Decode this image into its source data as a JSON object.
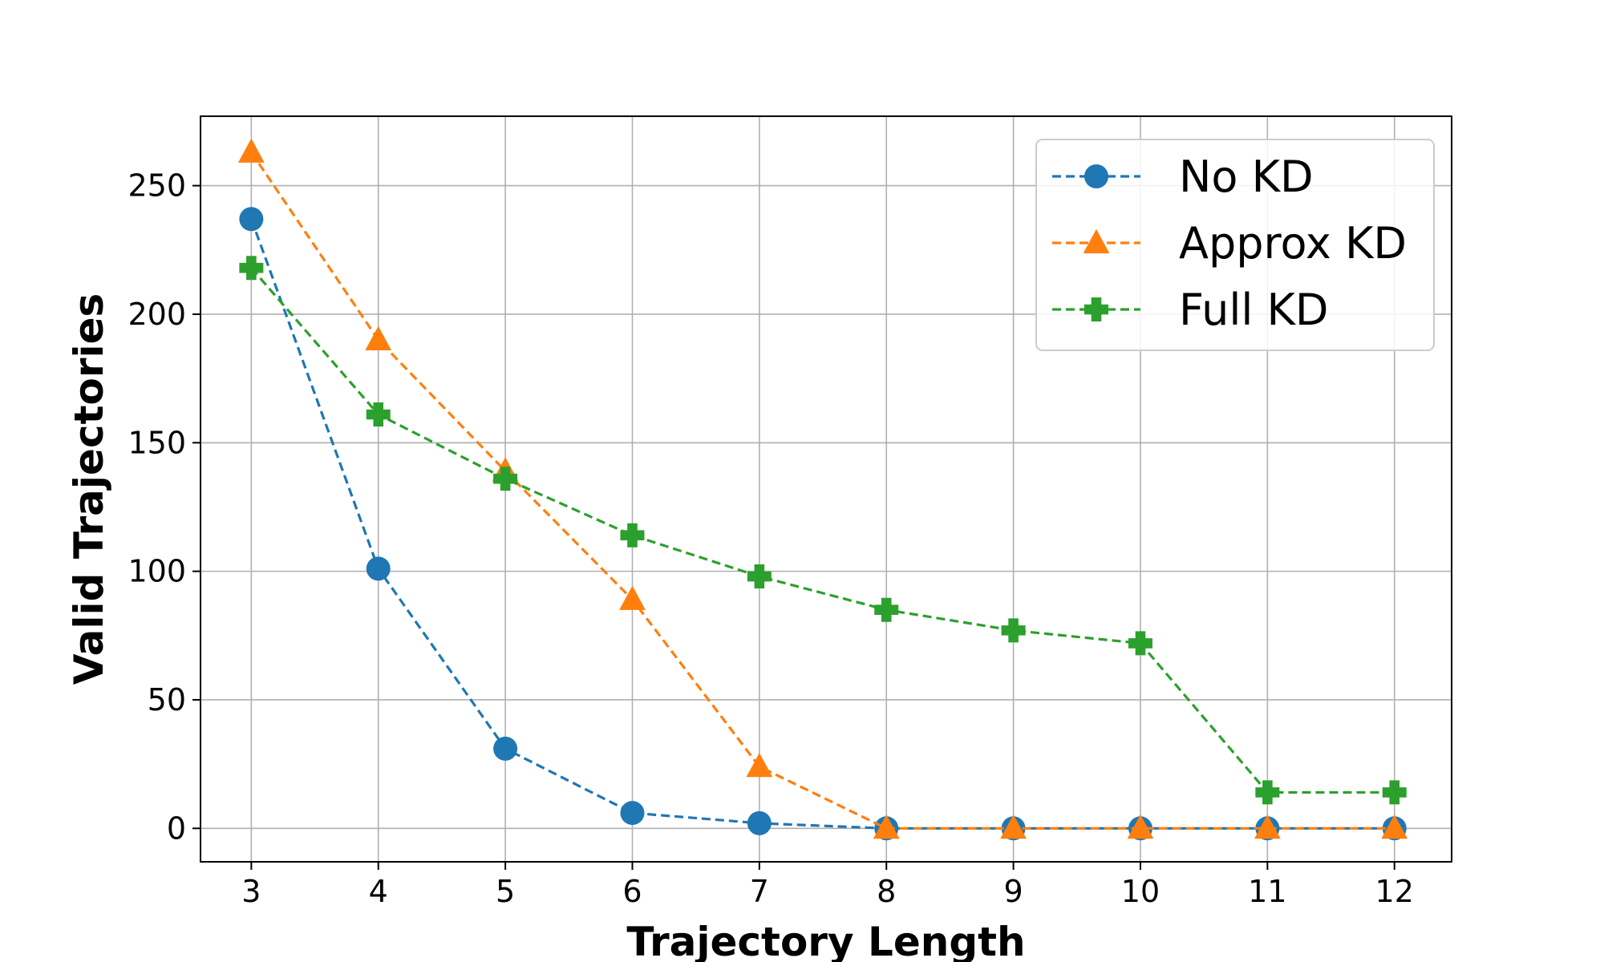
{
  "chart_data": {
    "type": "line",
    "title": "",
    "xlabel": "Trajectory Length",
    "ylabel": "Valid Trajectories",
    "x": [
      3,
      4,
      5,
      6,
      7,
      8,
      9,
      10,
      11,
      12
    ],
    "xlim": [
      2.6,
      12.45
    ],
    "ylim": [
      -13,
      277
    ],
    "xticks": [
      "3",
      "4",
      "5",
      "6",
      "7",
      "8",
      "9",
      "10",
      "11",
      "12"
    ],
    "yticks": [
      "0",
      "50",
      "100",
      "150",
      "200",
      "250"
    ],
    "grid": true,
    "legend_position": "top-right",
    "series": [
      {
        "name": "No KD",
        "color": "#1f77b4",
        "marker": "circle",
        "linestyle": "dashed",
        "values": [
          237,
          101,
          31,
          6,
          2,
          0,
          0,
          0,
          0,
          0
        ]
      },
      {
        "name": "Approx KD",
        "color": "#ff7f0e",
        "marker": "triangle",
        "linestyle": "dashed",
        "values": [
          263,
          190,
          139,
          89,
          24,
          0,
          0,
          0,
          0,
          0
        ]
      },
      {
        "name": "Full KD",
        "color": "#2ca02c",
        "marker": "plus",
        "linestyle": "dashed",
        "values": [
          218,
          161,
          136,
          114,
          98,
          85,
          77,
          72,
          14,
          14
        ]
      }
    ]
  }
}
